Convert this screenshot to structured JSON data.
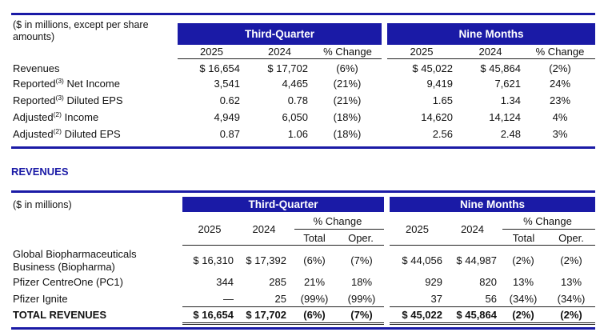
{
  "summary": {
    "caption": "($ in millions, except per share amounts)",
    "caption_line1": "($ in millions, except per share",
    "caption_line2": "amounts)",
    "groups": [
      "Third-Quarter",
      "Nine Months"
    ],
    "col_headers": [
      "2025",
      "2024",
      "% Change",
      "2025",
      "2024",
      "% Change"
    ],
    "rows": [
      {
        "label": "Revenues",
        "pre": "Revenues",
        "sup": "",
        "post": "",
        "vals": [
          "$ 16,654",
          "$ 17,702",
          "(6%)",
          "$ 45,022",
          "$ 45,864",
          "(2%)"
        ]
      },
      {
        "label": "Reported(3) Net Income",
        "pre": "Reported",
        "sup": "(3)",
        "post": " Net Income",
        "vals": [
          "3,541",
          "4,465",
          "(21%)",
          "9,419",
          "7,621",
          "24%"
        ]
      },
      {
        "label": "Reported(3) Diluted EPS",
        "pre": "Reported",
        "sup": "(3)",
        "post": " Diluted EPS",
        "vals": [
          "0.62",
          "0.78",
          "(21%)",
          "1.65",
          "1.34",
          "23%"
        ]
      },
      {
        "label": "Adjusted(2) Income",
        "pre": "Adjusted",
        "sup": "(2)",
        "post": " Income",
        "vals": [
          "4,949",
          "6,050",
          "(18%)",
          "14,620",
          "14,124",
          "4%"
        ]
      },
      {
        "label": "Adjusted(2) Diluted EPS",
        "pre": "Adjusted",
        "sup": "(2)",
        "post": " Diluted EPS",
        "vals": [
          "0.87",
          "1.06",
          "(18%)",
          "2.56",
          "2.48",
          "3%"
        ]
      }
    ]
  },
  "section_title": "REVENUES",
  "revenues": {
    "caption": "($ in millions)",
    "groups": [
      "Third-Quarter",
      "Nine Months"
    ],
    "year_headers": [
      "2025",
      "2024",
      "2025",
      "2024"
    ],
    "pct_change": "% Change",
    "sub_headers": [
      "Total",
      "Oper.",
      "Total",
      "Oper."
    ],
    "rows": [
      {
        "label_line1": "Global Biopharmaceuticals",
        "label_line2": "Business (Biopharma)",
        "vals": [
          "$ 16,310",
          "$ 17,392",
          "(6%)",
          "(7%)",
          "$ 44,056",
          "$ 44,987",
          "(2%)",
          "(2%)"
        ]
      },
      {
        "label_line1": "Pfizer CentreOne (PC1)",
        "label_line2": "",
        "vals": [
          "344",
          "285",
          "21%",
          "18%",
          "929",
          "820",
          "13%",
          "13%"
        ]
      },
      {
        "label_line1": "Pfizer Ignite",
        "label_line2": "",
        "vals": [
          "—",
          "25",
          "(99%)",
          "(99%)",
          "37",
          "56",
          "(34%)",
          "(34%)"
        ]
      }
    ],
    "total_row": {
      "label": "TOTAL REVENUES",
      "vals": [
        "$ 16,654",
        "$ 17,702",
        "(6%)",
        "(7%)",
        "$ 45,022",
        "$ 45,864",
        "(2%)",
        "(2%)"
      ]
    }
  },
  "colors": {
    "accent": "#1a1aa6",
    "text": "#111111"
  }
}
